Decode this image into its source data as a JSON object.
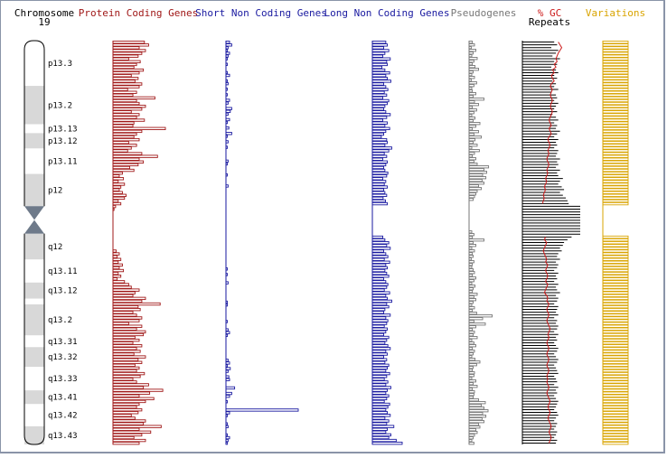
{
  "colors": {
    "protein": "#a01818",
    "short": "#1a1aa0",
    "long": "#1a1aa0",
    "pseudo": "#777777",
    "gc": "#cc1a1a",
    "repeats": "#000000",
    "variations": "#d9a400",
    "band_light": "#d8d8d8",
    "centromere": "#6e7a8a"
  },
  "header": {
    "chromosome_label": "Chromosome",
    "chromosome_number": "19",
    "protein_label": "Protein Coding Genes",
    "short_label": "Short Non Coding Genes",
    "long_label": "Long Non Coding Genes",
    "pseudo_label": "Pseudogenes",
    "gc_label": "% GC",
    "repeats_label": "Repeats",
    "variations_label": "Variations"
  },
  "chart_data": {
    "type": "bar",
    "orientation": "horizontal",
    "chromosome_bands": [
      {
        "label": "p13.3",
        "start": 0.0,
        "end": 0.112,
        "stain": "white"
      },
      {
        "label": "p13.2",
        "start": 0.112,
        "end": 0.207,
        "stain": "grey"
      },
      {
        "label": "p13.13",
        "start": 0.207,
        "end": 0.229,
        "stain": "white"
      },
      {
        "label": "p13.12",
        "start": 0.229,
        "end": 0.267,
        "stain": "grey"
      },
      {
        "label": "p13.11",
        "start": 0.267,
        "end": 0.33,
        "stain": "white"
      },
      {
        "label": "p12",
        "start": 0.33,
        "end": 0.41,
        "stain": "grey"
      },
      {
        "label": "",
        "start": 0.41,
        "end": 0.478,
        "stain": "grey"
      },
      {
        "label": "q12",
        "start": 0.478,
        "end": 0.542,
        "stain": "grey"
      },
      {
        "label": "q13.11",
        "start": 0.542,
        "end": 0.599,
        "stain": "white"
      },
      {
        "label": "q13.12",
        "start": 0.599,
        "end": 0.639,
        "stain": "grey"
      },
      {
        "label": "",
        "start": 0.639,
        "end": 0.653,
        "stain": "white"
      },
      {
        "label": "q13.2",
        "start": 0.653,
        "end": 0.73,
        "stain": "grey"
      },
      {
        "label": "q13.31",
        "start": 0.73,
        "end": 0.759,
        "stain": "white"
      },
      {
        "label": "q13.32",
        "start": 0.759,
        "end": 0.808,
        "stain": "grey"
      },
      {
        "label": "q13.33",
        "start": 0.808,
        "end": 0.866,
        "stain": "white"
      },
      {
        "label": "q13.41",
        "start": 0.866,
        "end": 0.9,
        "stain": "grey"
      },
      {
        "label": "q13.42",
        "start": 0.9,
        "end": 0.955,
        "stain": "white"
      },
      {
        "label": "q13.43",
        "start": 0.955,
        "end": 1.0,
        "stain": "grey"
      }
    ],
    "band_labels": [
      "p13.3",
      "p13.2",
      "p13.13",
      "p13.12",
      "p13.11",
      "p12",
      "q12",
      "q13.11",
      "q13.12",
      "q13.2",
      "q13.31",
      "q13.32",
      "q13.33",
      "q13.41",
      "q13.42",
      "q13.43"
    ],
    "series": [
      {
        "name": "Protein Coding Genes",
        "key": "protein",
        "max": 1.0,
        "values": [
          0.6,
          0.68,
          0.5,
          0.62,
          0.55,
          0.48,
          0.3,
          0.52,
          0.45,
          0.4,
          0.58,
          0.5,
          0.35,
          0.48,
          0.42,
          0.55,
          0.5,
          0.28,
          0.45,
          0.38,
          0.8,
          0.45,
          0.5,
          0.62,
          0.55,
          0.35,
          0.5,
          0.45,
          0.6,
          0.4,
          0.38,
          1.0,
          0.55,
          0.45,
          0.4,
          0.5,
          0.3,
          0.45,
          0.35,
          0.28,
          0.55,
          0.85,
          0.5,
          0.58,
          0.48,
          0.32,
          0.4,
          0.18,
          0.12,
          0.2,
          0.1,
          0.22,
          0.15,
          0.12,
          0.18,
          0.25,
          0.22,
          0.1,
          0.15,
          0.05,
          0.02,
          0.0,
          0.0,
          0.0,
          0.0,
          0.0,
          0.0,
          0.0,
          0.0,
          0.0,
          0.0,
          0.0,
          0.0,
          0.0,
          0.0,
          0.06,
          0.12,
          0.08,
          0.15,
          0.1,
          0.18,
          0.12,
          0.2,
          0.1,
          0.15,
          0.08,
          0.22,
          0.3,
          0.35,
          0.5,
          0.42,
          0.38,
          0.62,
          0.55,
          0.9,
          0.48,
          0.52,
          0.38,
          0.45,
          0.55,
          0.5,
          0.3,
          0.55,
          0.45,
          0.62,
          0.58,
          0.42,
          0.5,
          0.38,
          0.55,
          0.45,
          0.52,
          0.4,
          0.62,
          0.48,
          0.55,
          0.42,
          0.5,
          0.45,
          0.6,
          0.52,
          0.38,
          0.45,
          0.68,
          0.58,
          0.95,
          0.7,
          0.5,
          0.78,
          0.62,
          0.5,
          0.45,
          0.55,
          0.48,
          0.35,
          0.42,
          0.62,
          0.58,
          0.92,
          0.5,
          0.72,
          0.55,
          0.4,
          0.62,
          0.5
        ]
      },
      {
        "name": "Short Non Coding Genes",
        "key": "short",
        "max": 1.0,
        "values": [
          0.05,
          0.08,
          0.03,
          0.02,
          0.05,
          0.03,
          0.02,
          0.0,
          0.02,
          0.0,
          0.0,
          0.02,
          0.05,
          0.0,
          0.02,
          0.03,
          0.0,
          0.02,
          0.0,
          0.02,
          0.0,
          0.05,
          0.03,
          0.0,
          0.08,
          0.06,
          0.03,
          0.0,
          0.05,
          0.02,
          0.0,
          0.04,
          0.0,
          0.08,
          0.02,
          0.0,
          0.03,
          0.0,
          0.02,
          0.0,
          0.0,
          0.0,
          0.0,
          0.03,
          0.02,
          0.0,
          0.0,
          0.0,
          0.02,
          0.0,
          0.0,
          0.0,
          0.03,
          0.0,
          0.0,
          0.0,
          0.0,
          0.0,
          0.0,
          0.0,
          0.0,
          0.0,
          0.0,
          0.0,
          0.0,
          0.0,
          0.0,
          0.0,
          0.0,
          0.0,
          0.0,
          0.0,
          0.0,
          0.0,
          0.0,
          0.0,
          0.0,
          0.0,
          0.0,
          0.0,
          0.0,
          0.0,
          0.02,
          0.0,
          0.02,
          0.0,
          0.0,
          0.03,
          0.0,
          0.0,
          0.0,
          0.0,
          0.0,
          0.0,
          0.02,
          0.02,
          0.0,
          0.0,
          0.0,
          0.0,
          0.0,
          0.02,
          0.0,
          0.0,
          0.03,
          0.05,
          0.02,
          0.0,
          0.0,
          0.0,
          0.0,
          0.0,
          0.0,
          0.0,
          0.0,
          0.03,
          0.05,
          0.02,
          0.06,
          0.03,
          0.0,
          0.04,
          0.05,
          0.0,
          0.0,
          0.12,
          0.0,
          0.08,
          0.05,
          0.0,
          0.02,
          0.0,
          0.0,
          1.0,
          0.05,
          0.02,
          0.0,
          0.0,
          0.02,
          0.03,
          0.0,
          0.0,
          0.02,
          0.05,
          0.03,
          0.02
        ]
      },
      {
        "name": "Long Non Coding Genes",
        "key": "long",
        "max": 1.0,
        "values": [
          0.45,
          0.5,
          0.38,
          0.55,
          0.42,
          0.35,
          0.6,
          0.48,
          0.5,
          0.32,
          0.42,
          0.58,
          0.45,
          0.5,
          0.62,
          0.38,
          0.45,
          0.52,
          0.4,
          0.48,
          0.35,
          0.55,
          0.5,
          0.42,
          0.38,
          0.45,
          0.6,
          0.48,
          0.35,
          0.5,
          0.42,
          0.58,
          0.45,
          0.38,
          0.3,
          0.48,
          0.5,
          0.42,
          0.65,
          0.55,
          0.4,
          0.48,
          0.35,
          0.5,
          0.45,
          0.38,
          0.42,
          0.52,
          0.48,
          0.35,
          0.45,
          0.4,
          0.5,
          0.38,
          0.42,
          0.48,
          0.36,
          0.44,
          0.5,
          0.0,
          0.0,
          0.0,
          0.0,
          0.0,
          0.0,
          0.0,
          0.0,
          0.0,
          0.0,
          0.0,
          0.35,
          0.42,
          0.55,
          0.48,
          0.6,
          0.38,
          0.45,
          0.52,
          0.4,
          0.58,
          0.45,
          0.5,
          0.42,
          0.48,
          0.55,
          0.38,
          0.45,
          0.52,
          0.48,
          0.4,
          0.58,
          0.45,
          0.5,
          0.65,
          0.48,
          0.55,
          0.42,
          0.38,
          0.6,
          0.45,
          0.52,
          0.48,
          0.4,
          0.5,
          0.45,
          0.38,
          0.55,
          0.48,
          0.42,
          0.52,
          0.6,
          0.45,
          0.5,
          0.38,
          0.48,
          0.42,
          0.55,
          0.5,
          0.45,
          0.58,
          0.48,
          0.4,
          0.52,
          0.45,
          0.62,
          0.5,
          0.45,
          0.55,
          0.48,
          0.4,
          0.58,
          0.52,
          0.45,
          0.5,
          0.6,
          0.42,
          0.55,
          0.48,
          0.72,
          0.5,
          0.45,
          0.62,
          0.55,
          0.8,
          1.0
        ]
      },
      {
        "name": "Pseudogenes",
        "key": "pseudo",
        "max": 1.0,
        "values": [
          0.12,
          0.2,
          0.08,
          0.25,
          0.15,
          0.1,
          0.3,
          0.18,
          0.12,
          0.22,
          0.35,
          0.15,
          0.1,
          0.2,
          0.08,
          0.28,
          0.18,
          0.1,
          0.12,
          0.25,
          0.15,
          0.55,
          0.2,
          0.35,
          0.12,
          0.28,
          0.18,
          0.1,
          0.22,
          0.15,
          0.4,
          0.25,
          0.12,
          0.35,
          0.18,
          0.45,
          0.22,
          0.15,
          0.3,
          0.1,
          0.38,
          0.2,
          0.12,
          0.25,
          0.18,
          0.3,
          0.72,
          0.55,
          0.65,
          0.5,
          0.62,
          0.48,
          0.55,
          0.35,
          0.45,
          0.3,
          0.25,
          0.2,
          0.15,
          0.0,
          0.0,
          0.0,
          0.0,
          0.0,
          0.0,
          0.0,
          0.0,
          0.0,
          0.0,
          0.0,
          0.1,
          0.18,
          0.12,
          0.55,
          0.15,
          0.25,
          0.1,
          0.2,
          0.12,
          0.15,
          0.08,
          0.18,
          0.12,
          0.1,
          0.15,
          0.2,
          0.12,
          0.25,
          0.18,
          0.1,
          0.22,
          0.15,
          0.12,
          0.3,
          0.18,
          0.25,
          0.15,
          0.1,
          0.2,
          0.12,
          0.28,
          0.85,
          0.5,
          0.18,
          0.6,
          0.25,
          0.12,
          0.2,
          0.15,
          0.3,
          0.1,
          0.18,
          0.25,
          0.12,
          0.2,
          0.15,
          0.1,
          0.22,
          0.4,
          0.28,
          0.15,
          0.12,
          0.2,
          0.18,
          0.1,
          0.25,
          0.15,
          0.3,
          0.12,
          0.2,
          0.18,
          0.15,
          0.35,
          0.6,
          0.45,
          0.55,
          0.7,
          0.5,
          0.62,
          0.48,
          0.55,
          0.35,
          0.4,
          0.25,
          0.3,
          0.2,
          0.15,
          0.1,
          0.18
        ]
      },
      {
        "name": "Repeats",
        "key": "repeats",
        "max": 1.0,
        "values": [
          0.55,
          0.6,
          0.5,
          0.62,
          0.58,
          0.52,
          0.65,
          0.55,
          0.6,
          0.5,
          0.58,
          0.62,
          0.55,
          0.6,
          0.52,
          0.58,
          0.55,
          0.62,
          0.5,
          0.58,
          0.6,
          0.55,
          0.62,
          0.58,
          0.55,
          0.6,
          0.52,
          0.58,
          0.62,
          0.55,
          0.6,
          0.58,
          0.65,
          0.6,
          0.55,
          0.62,
          0.58,
          0.6,
          0.55,
          0.62,
          0.6,
          0.58,
          0.65,
          0.6,
          0.62,
          0.58,
          0.65,
          0.6,
          0.62,
          0.7,
          0.65,
          0.62,
          0.68,
          0.72,
          0.65,
          0.7,
          0.75,
          0.78,
          0.8,
          1.0,
          1.0,
          1.0,
          1.0,
          1.0,
          1.0,
          1.0,
          1.0,
          1.0,
          1.0,
          1.0,
          0.85,
          0.78,
          0.72,
          0.7,
          0.65,
          0.68,
          0.62,
          0.6,
          0.65,
          0.58,
          0.62,
          0.6,
          0.55,
          0.62,
          0.58,
          0.6,
          0.55,
          0.62,
          0.58,
          0.6,
          0.65,
          0.58,
          0.62,
          0.6,
          0.55,
          0.62,
          0.6,
          0.58,
          0.62,
          0.55,
          0.6,
          0.58,
          0.62,
          0.6,
          0.55,
          0.62,
          0.58,
          0.6,
          0.55,
          0.58,
          0.62,
          0.6,
          0.55,
          0.58,
          0.62,
          0.6,
          0.55,
          0.58,
          0.6,
          0.62,
          0.55,
          0.58,
          0.6,
          0.55,
          0.62,
          0.58,
          0.6,
          0.55,
          0.58,
          0.62,
          0.6,
          0.58,
          0.55,
          0.6,
          0.62,
          0.58,
          0.55,
          0.6,
          0.58,
          0.55,
          0.6,
          0.58,
          0.55,
          0.6,
          0.58
        ]
      },
      {
        "name": "% GC",
        "key": "gc",
        "max": 1.0,
        "values": [
          0.62,
          0.65,
          0.68,
          0.65,
          0.62,
          0.6,
          0.58,
          0.6,
          0.55,
          0.58,
          0.52,
          0.55,
          0.5,
          0.52,
          0.55,
          0.5,
          0.48,
          0.52,
          0.5,
          0.48,
          0.5,
          0.52,
          0.5,
          0.48,
          0.5,
          0.52,
          0.5,
          0.48,
          0.46,
          0.48,
          0.5,
          0.46,
          0.48,
          0.5,
          0.46,
          0.44,
          0.46,
          0.48,
          0.46,
          0.44,
          0.46,
          0.44,
          0.42,
          0.44,
          0.46,
          0.44,
          0.42,
          0.44,
          0.42,
          0.4,
          0.42,
          0.4,
          0.38,
          0.4,
          0.38,
          0.36,
          0.38,
          0.36,
          0.35,
          0.0,
          0.0,
          0.0,
          0.0,
          0.0,
          0.0,
          0.0,
          0.0,
          0.0,
          0.0,
          0.0,
          0.4,
          0.38,
          0.42,
          0.4,
          0.38,
          0.36,
          0.38,
          0.4,
          0.42,
          0.4,
          0.44,
          0.42,
          0.4,
          0.42,
          0.44,
          0.42,
          0.4,
          0.44,
          0.42,
          0.4,
          0.38,
          0.42,
          0.44,
          0.42,
          0.46,
          0.44,
          0.42,
          0.44,
          0.46,
          0.44,
          0.42,
          0.44,
          0.46,
          0.48,
          0.46,
          0.44,
          0.46,
          0.44,
          0.42,
          0.44,
          0.46,
          0.44,
          0.42,
          0.44,
          0.46,
          0.44,
          0.42,
          0.44,
          0.46,
          0.44,
          0.42,
          0.44,
          0.42,
          0.44,
          0.46,
          0.44,
          0.42,
          0.44,
          0.46,
          0.48,
          0.46,
          0.44,
          0.46,
          0.48,
          0.46,
          0.44,
          0.46,
          0.48,
          0.5,
          0.48,
          0.46,
          0.48,
          0.5,
          0.48,
          0.46
        ]
      },
      {
        "name": "Variations",
        "key": "variations",
        "max": 1.0,
        "values": [
          1.0,
          1.0,
          1.0,
          1.0,
          1.0,
          1.0,
          1.0,
          1.0,
          1.0,
          1.0,
          1.0,
          1.0,
          1.0,
          1.0,
          1.0,
          1.0,
          1.0,
          1.0,
          1.0,
          1.0,
          1.0,
          1.0,
          1.0,
          1.0,
          1.0,
          1.0,
          1.0,
          1.0,
          1.0,
          1.0,
          1.0,
          1.0,
          1.0,
          1.0,
          1.0,
          1.0,
          1.0,
          1.0,
          1.0,
          1.0,
          1.0,
          1.0,
          1.0,
          1.0,
          1.0,
          1.0,
          1.0,
          1.0,
          1.0,
          1.0,
          1.0,
          1.0,
          1.0,
          1.0,
          1.0,
          1.0,
          1.0,
          1.0,
          1.0,
          0.0,
          0.0,
          0.0,
          0.0,
          0.0,
          0.0,
          0.0,
          0.0,
          0.0,
          0.0,
          0.0,
          1.0,
          1.0,
          1.0,
          1.0,
          1.0,
          1.0,
          1.0,
          1.0,
          1.0,
          1.0,
          1.0,
          1.0,
          1.0,
          1.0,
          1.0,
          1.0,
          1.0,
          1.0,
          1.0,
          1.0,
          1.0,
          1.0,
          1.0,
          1.0,
          1.0,
          1.0,
          1.0,
          1.0,
          1.0,
          1.0,
          1.0,
          1.0,
          1.0,
          1.0,
          1.0,
          1.0,
          1.0,
          1.0,
          1.0,
          1.0,
          1.0,
          1.0,
          1.0,
          1.0,
          1.0,
          1.0,
          1.0,
          1.0,
          1.0,
          1.0,
          1.0,
          1.0,
          1.0,
          1.0,
          1.0,
          1.0,
          1.0,
          1.0,
          1.0,
          1.0,
          1.0,
          1.0,
          1.0,
          1.0,
          1.0,
          1.0,
          1.0,
          1.0,
          1.0,
          1.0,
          1.0,
          1.0,
          1.0,
          1.0,
          1.0
        ]
      }
    ]
  }
}
